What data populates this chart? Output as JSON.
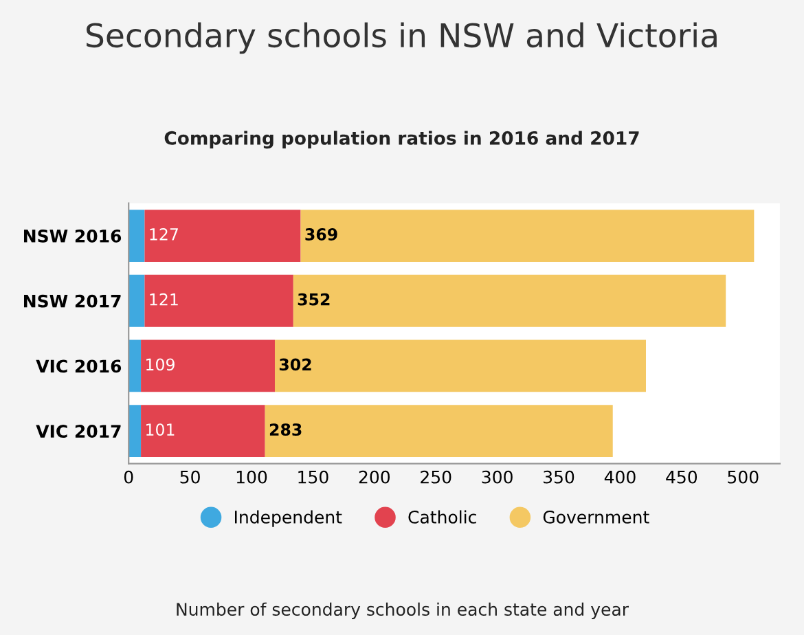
{
  "chart_data": {
    "type": "bar",
    "orientation": "horizontal",
    "stacked": true,
    "title": "Secondary schools in NSW and Victoria",
    "subtitle": "Comparing population ratios in 2016 and 2017",
    "categories": [
      "NSW 2016",
      "NSW 2017",
      "VIC 2016",
      "VIC 2017"
    ],
    "series": [
      {
        "name": "Independent",
        "color": "#3fa9e0",
        "values": [
          13,
          13,
          10,
          10
        ]
      },
      {
        "name": "Catholic",
        "color": "#e2434f",
        "values": [
          127,
          121,
          109,
          101
        ],
        "value_labels": [
          "127",
          "121",
          "109",
          "101"
        ]
      },
      {
        "name": "Government",
        "color": "#f4c863",
        "values": [
          369,
          352,
          302,
          283
        ],
        "value_labels": [
          "369",
          "352",
          "302",
          "283"
        ]
      }
    ],
    "xlim": [
      0,
      530
    ],
    "xticks": [
      0,
      50,
      100,
      150,
      200,
      250,
      300,
      350,
      400,
      450,
      500
    ],
    "grid": false,
    "legend": "bottom",
    "annotations": [
      "Number of secondary schools in each state and year"
    ]
  }
}
